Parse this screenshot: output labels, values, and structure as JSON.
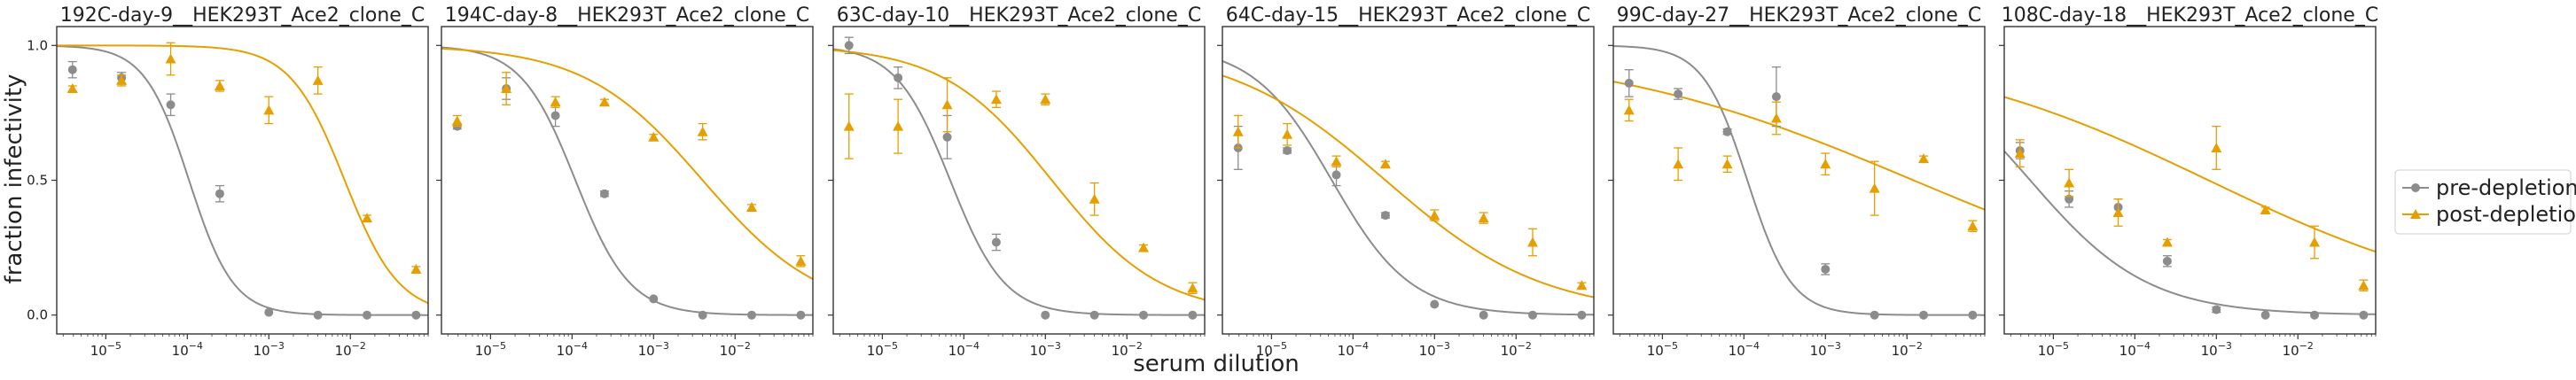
{
  "chart_data": {
    "type": "scatter",
    "x_scale": "log",
    "xlabel": "serum dilution",
    "ylabel": "fraction infectivity",
    "ylim": [
      -0.07,
      1.07
    ],
    "xlim": [
      2.5e-06,
      0.09
    ],
    "x_ticks": [
      1e-05,
      0.0001,
      0.001,
      0.01
    ],
    "x_tick_labels": [
      {
        "base": "10",
        "exp": "−5"
      },
      {
        "base": "10",
        "exp": "−4"
      },
      {
        "base": "10",
        "exp": "−3"
      },
      {
        "base": "10",
        "exp": "−2"
      }
    ],
    "y_ticks": [
      0.0,
      0.5,
      1.0
    ],
    "y_tick_labels": [
      "0.0",
      "0.5",
      "1.0"
    ],
    "grid": false,
    "legend_placement": "right",
    "legend": [
      {
        "label": "pre-depletion",
        "color": "#8c8c8c",
        "marker": "circle"
      },
      {
        "label": "post-depletion",
        "color": "#e69f00",
        "marker": "triangle"
      }
    ],
    "x_points": [
      3.9e-06,
      1.56e-05,
      6.25e-05,
      0.00025,
      0.001,
      0.004,
      0.016,
      0.064
    ],
    "panels": [
      {
        "title": "192C-day-9__HEK293T_Ace2_clone_C",
        "pre": {
          "y": [
            0.91,
            0.88,
            0.78,
            0.45,
            0.01,
            0.0,
            0.0,
            0.0
          ],
          "err": [
            0.03,
            0.02,
            0.04,
            0.03,
            0.0,
            0.0,
            0.0,
            0.0
          ],
          "ic50": 0.000105,
          "hill": 1.6
        },
        "post": {
          "y": [
            0.84,
            0.87,
            0.95,
            0.85,
            0.76,
            0.87,
            0.36,
            0.17
          ],
          "err": [
            0.01,
            0.02,
            0.06,
            0.02,
            0.05,
            0.05,
            0.01,
            0.01
          ],
          "ic50": 0.0085,
          "hill": 1.3
        }
      },
      {
        "title": "194C-day-8__HEK293T_Ace2_clone_C",
        "pre": {
          "y": [
            0.7,
            0.84,
            0.74,
            0.45,
            0.06,
            0.0,
            0.0,
            0.0
          ],
          "err": [
            0.01,
            0.04,
            0.04,
            0.01,
            0.0,
            0.0,
            0.0,
            0.0
          ],
          "ic50": 0.00011,
          "hill": 1.3
        },
        "post": {
          "y": [
            0.72,
            0.84,
            0.79,
            0.79,
            0.66,
            0.68,
            0.4,
            0.2
          ],
          "err": [
            0.02,
            0.06,
            0.02,
            0.01,
            0.01,
            0.03,
            0.01,
            0.02
          ],
          "ic50": 0.004,
          "hill": 0.6
        }
      },
      {
        "title": "63C-day-10__HEK293T_Ace2_clone_C",
        "pre": {
          "y": [
            1.0,
            0.88,
            0.66,
            0.27,
            0.0,
            0.0,
            0.0,
            0.0
          ],
          "err": [
            0.03,
            0.04,
            0.08,
            0.03,
            0.0,
            0.0,
            0.0,
            0.0
          ],
          "ic50": 6.8e-05,
          "hill": 1.3
        },
        "post": {
          "y": [
            0.7,
            0.7,
            0.78,
            0.8,
            0.8,
            0.43,
            0.25,
            0.1
          ],
          "err": [
            0.12,
            0.1,
            0.1,
            0.03,
            0.02,
            0.06,
            0.01,
            0.02
          ],
          "ic50": 0.0012,
          "hill": 0.65
        }
      },
      {
        "title": "64C-day-15__HEK293T_Ace2_clone_C",
        "pre": {
          "y": [
            0.62,
            0.61,
            0.52,
            0.37,
            0.04,
            0.0,
            0.0,
            0.0
          ],
          "err": [
            0.08,
            0.01,
            0.04,
            0.01,
            0.0,
            0.0,
            0.0,
            0.0
          ],
          "ic50": 5.5e-05,
          "hill": 0.9
        },
        "post": {
          "y": [
            0.68,
            0.67,
            0.57,
            0.56,
            0.37,
            0.36,
            0.27,
            0.11
          ],
          "err": [
            0.06,
            0.04,
            0.02,
            0.01,
            0.02,
            0.02,
            0.05,
            0.01
          ],
          "ic50": 0.00025,
          "hill": 0.45
        }
      },
      {
        "title": "99C-day-27__HEK293T_Ace2_clone_C",
        "pre": {
          "y": [
            0.86,
            0.82,
            0.68,
            0.81,
            0.17,
            0.0,
            0.0,
            0.0
          ],
          "err": [
            0.05,
            0.02,
            0.01,
            0.11,
            0.02,
            0.0,
            0.0,
            0.0
          ],
          "ic50": 0.00011,
          "hill": 1.6
        },
        "post": {
          "y": [
            0.76,
            0.56,
            0.56,
            0.73,
            0.56,
            0.47,
            0.58,
            0.33
          ],
          "err": [
            0.04,
            0.06,
            0.03,
            0.06,
            0.04,
            0.1,
            0.01,
            0.02
          ],
          "ic50": 0.012,
          "hill": 0.22
        }
      },
      {
        "title": "108C-day-18__HEK293T_Ace2_clone_C",
        "pre": {
          "y": [
            0.61,
            0.43,
            0.4,
            0.2,
            0.02,
            0.0,
            0.0,
            0.0
          ],
          "err": [
            0.03,
            0.03,
            0.03,
            0.02,
            0.01,
            0.0,
            0.0,
            0.0
          ],
          "ic50": 5.2e-06,
          "hill": 0.6
        },
        "post": {
          "y": [
            0.6,
            0.49,
            0.38,
            0.27,
            0.62,
            0.39,
            0.27,
            0.11
          ],
          "err": [
            0.05,
            0.05,
            0.05,
            0.01,
            0.08,
            0.01,
            0.06,
            0.02
          ],
          "ic50": 0.0008,
          "hill": 0.25
        }
      }
    ]
  }
}
